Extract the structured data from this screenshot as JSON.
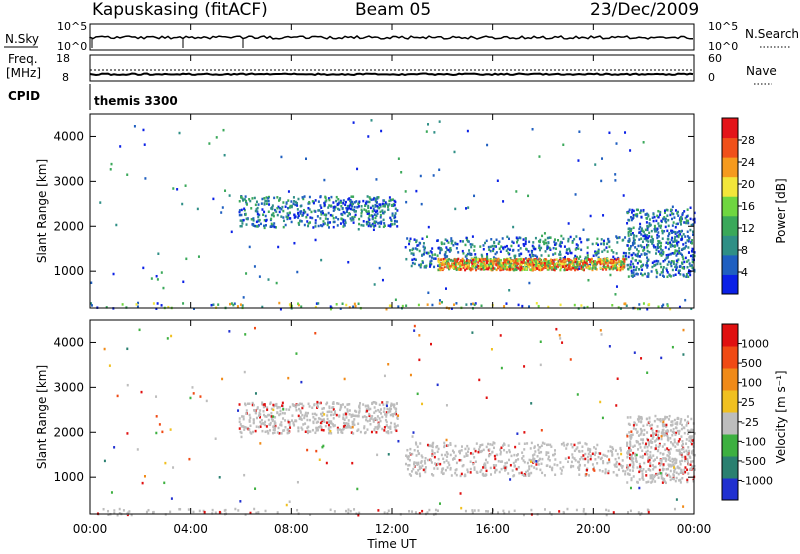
{
  "header": {
    "station": "Kapuskasing (fitACF)",
    "beam": "Beam 05",
    "date": "23/Dec/2009"
  },
  "noise_panel": {
    "left_label": "N.Sky",
    "left_ticks": [
      "10^5",
      "10^0"
    ],
    "right_label": "N.Search",
    "right_ticks": [
      "10^5",
      "10^0"
    ]
  },
  "freq_panel": {
    "left_label_1": "Freq.",
    "left_label_2": "[MHz]",
    "left_ticks": [
      "18",
      "8"
    ],
    "right_label": "Nave",
    "right_ticks": [
      "60",
      "0"
    ]
  },
  "cpid": {
    "label": "CPID",
    "value": "themis 3300"
  },
  "chart_data": [
    {
      "type": "heatmap",
      "panel": "power",
      "xlabel": "",
      "ylabel": "Slant Range [km]",
      "xlim": [
        0,
        24
      ],
      "ylim": [
        180,
        4500
      ],
      "y_ticks": [
        "4000",
        "3000",
        "2000",
        "1000"
      ],
      "colorbar": {
        "label": "Power [dB]",
        "ticks": [
          "28",
          "24",
          "20",
          "16",
          "12",
          "8",
          "4"
        ],
        "colors": [
          "#0a20e6",
          "#1f5fc0",
          "#2f8f86",
          "#3aa85a",
          "#6fd640",
          "#f2e63a",
          "#f59a1e",
          "#f0501a",
          "#e4141a"
        ]
      },
      "features": [
        {
          "name": "ground scatter",
          "time_range": [
            0,
            24
          ],
          "range_km": [
            180,
            320
          ]
        },
        {
          "name": "echo band",
          "time_range": [
            5.9,
            12.2
          ],
          "range_km": [
            2000,
            2700
          ]
        },
        {
          "name": "echo band",
          "time_range": [
            12.5,
            21.5
          ],
          "range_km": [
            1100,
            1800
          ]
        },
        {
          "name": "strong echo core",
          "time_range": [
            13.8,
            21.2
          ],
          "range_km": [
            1050,
            1300
          ]
        },
        {
          "name": "echo band",
          "time_range": [
            21.3,
            24
          ],
          "range_km": [
            900,
            2400
          ]
        }
      ]
    },
    {
      "type": "heatmap",
      "panel": "velocity",
      "xlabel": "Time UT",
      "ylabel": "Slant Range [km]",
      "xlim": [
        0,
        24
      ],
      "ylim": [
        180,
        4500
      ],
      "x_ticks": [
        "00:00",
        "04:00",
        "08:00",
        "12:00",
        "16:00",
        "20:00",
        "00:00"
      ],
      "y_ticks": [
        "4000",
        "3000",
        "2000",
        "1000"
      ],
      "colorbar": {
        "label": "Velocity [m s⁻¹]",
        "ticks": [
          "1000",
          "500",
          "100",
          "25",
          "-25",
          "-100",
          "-500",
          "-1000"
        ],
        "colors": [
          "#2030d0",
          "#2a8070",
          "#3db040",
          "#bdbdbd",
          "#f0c020",
          "#f08a18",
          "#f04a14",
          "#e01010"
        ]
      },
      "features": [
        {
          "name": "ground scatter",
          "time_range": [
            0,
            24
          ],
          "range_km": [
            180,
            320
          ]
        },
        {
          "name": "grey band",
          "time_range": [
            5.9,
            12.2
          ],
          "range_km": [
            2000,
            2700
          ]
        },
        {
          "name": "grey band",
          "time_range": [
            12.5,
            21.5
          ],
          "range_km": [
            1050,
            1800
          ]
        },
        {
          "name": "grey band",
          "time_range": [
            21.3,
            24
          ],
          "range_km": [
            900,
            2400
          ]
        }
      ]
    }
  ]
}
